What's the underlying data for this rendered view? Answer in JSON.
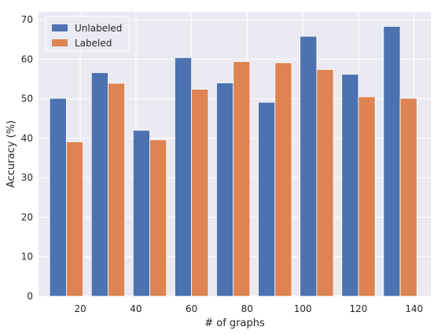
{
  "chart_data": {
    "type": "bar",
    "xlabel": "# of graphs",
    "ylabel": "Accuracy (%)",
    "ylim": [
      0,
      72
    ],
    "yticks": [
      0,
      10,
      20,
      30,
      40,
      50,
      60,
      70
    ],
    "xlim": [
      5,
      146
    ],
    "xticks": [
      20,
      40,
      60,
      80,
      100,
      120,
      140
    ],
    "grid": true,
    "legend_position": "top-left",
    "background_color": "#eaeaf2",
    "x": [
      15,
      30,
      45,
      60,
      75,
      90,
      105,
      120,
      135
    ],
    "bar_width_units": 6,
    "series": [
      {
        "name": "Unlabeled",
        "color": "#4c72b0",
        "values": [
          50.1,
          56.6,
          42.0,
          60.4,
          54.0,
          49.1,
          65.8,
          56.2,
          68.3
        ]
      },
      {
        "name": "Labeled",
        "color": "#dd8452",
        "values": [
          39.1,
          53.9,
          39.6,
          52.4,
          59.4,
          59.1,
          57.4,
          50.5,
          50.1
        ]
      }
    ]
  }
}
